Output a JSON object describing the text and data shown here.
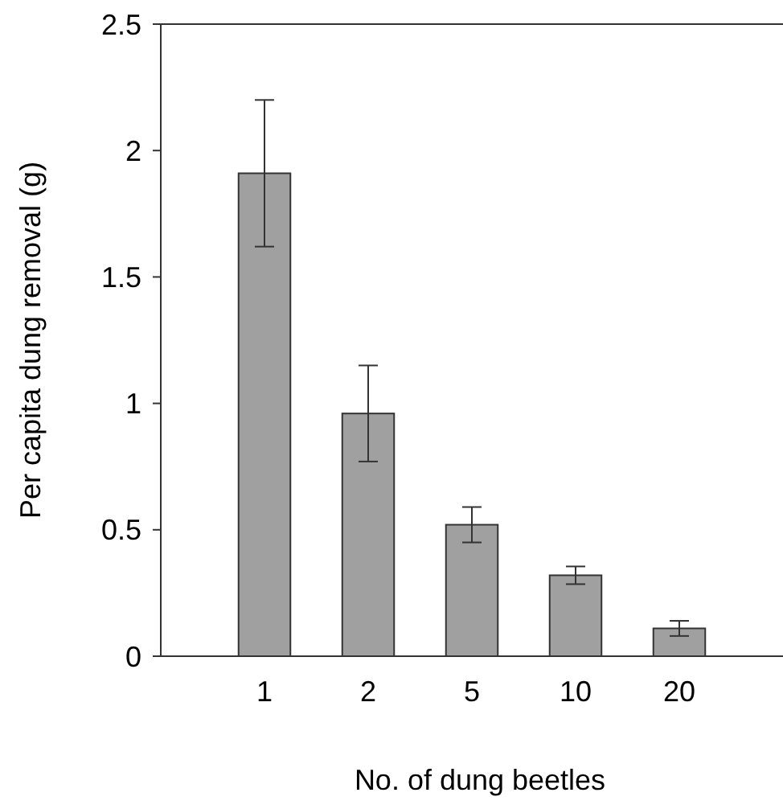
{
  "chart_data": {
    "type": "bar",
    "xlabel": "No. of dung beetles",
    "ylabel": "Per capita dung removal (g)",
    "categories": [
      "1",
      "2",
      "5",
      "10",
      "20"
    ],
    "values": [
      1.91,
      0.96,
      0.52,
      0.32,
      0.11
    ],
    "errors": [
      0.29,
      0.19,
      0.07,
      0.035,
      0.03
    ],
    "color": "#a0a0a0",
    "ylim": [
      0,
      2.5
    ],
    "yticks": [
      0,
      {
        "value": 0.5,
        "label": "0.5"
      },
      1,
      {
        "value": 1.5,
        "label": "1.5"
      },
      2,
      {
        "value": 2.5,
        "label": "2.5"
      }
    ],
    "grid": false
  }
}
